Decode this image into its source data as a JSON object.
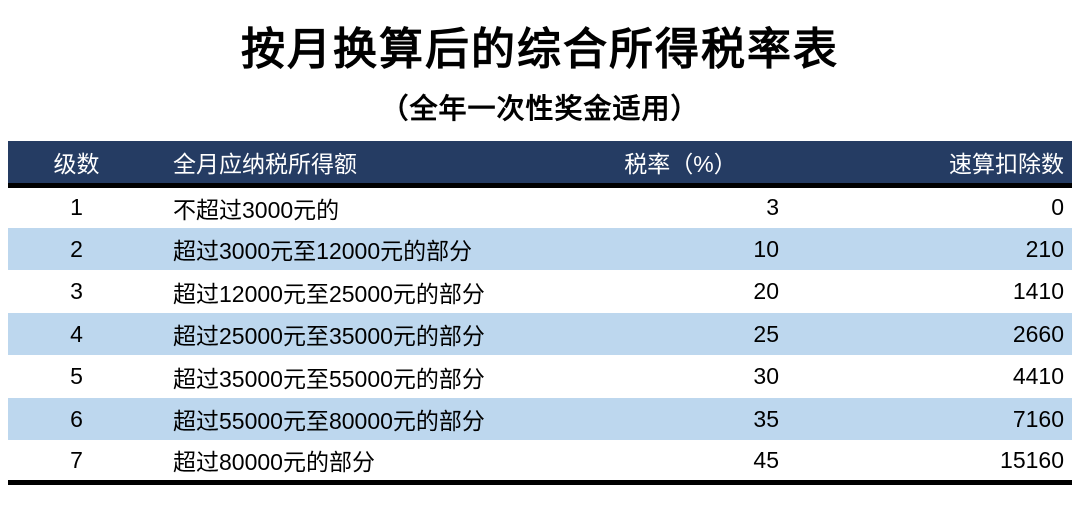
{
  "title": "按月换算后的综合所得税率表",
  "subtitle": "（全年一次性奖金适用）",
  "colors": {
    "header_bg": "#253C63",
    "stripe_bg": "#BDD7EE",
    "rule_color": "#000000"
  },
  "table": {
    "columns": {
      "level": "级数",
      "income": "全月应纳税所得额",
      "rate": "税率（%）",
      "deduction": "速算扣除数"
    },
    "rows": [
      {
        "level": "1",
        "income": "不超过3000元的",
        "rate": "3",
        "deduction": "0"
      },
      {
        "level": "2",
        "income": "超过3000元至12000元的部分",
        "rate": "10",
        "deduction": "210"
      },
      {
        "level": "3",
        "income": "超过12000元至25000元的部分",
        "rate": "20",
        "deduction": "1410"
      },
      {
        "level": "4",
        "income": "超过25000元至35000元的部分",
        "rate": "25",
        "deduction": "2660"
      },
      {
        "level": "5",
        "income": "超过35000元至55000元的部分",
        "rate": "30",
        "deduction": "4410"
      },
      {
        "level": "6",
        "income": "超过55000元至80000元的部分",
        "rate": "35",
        "deduction": "7160"
      },
      {
        "level": "7",
        "income": "超过80000元的部分",
        "rate": "45",
        "deduction": "15160"
      }
    ]
  }
}
